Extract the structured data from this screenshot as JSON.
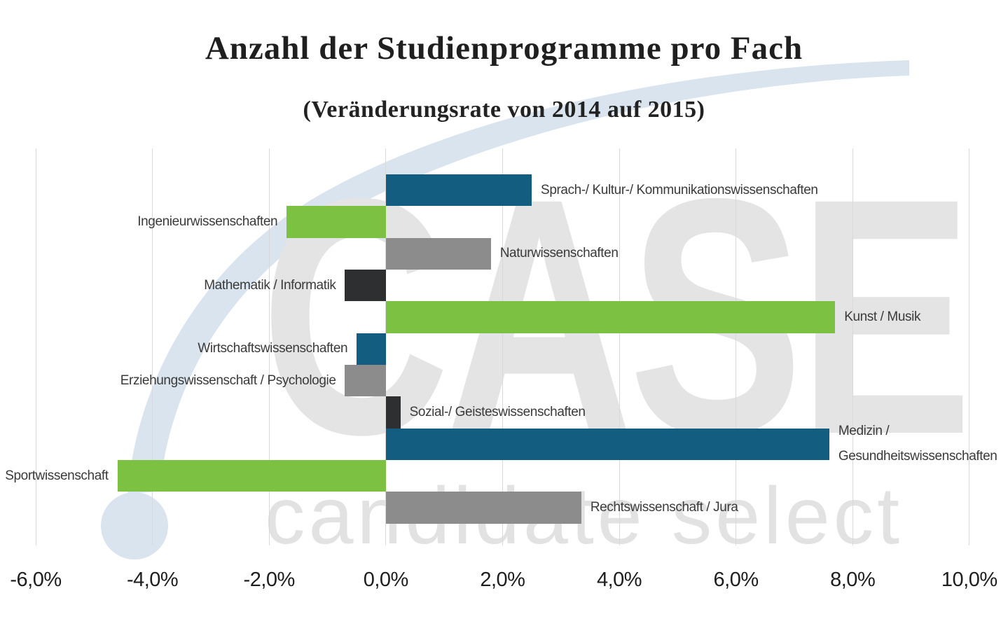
{
  "title": "Anzahl der Studienprogramme pro Fach",
  "subtitle": "(Veränderungsrate von 2014 auf 2015)",
  "watermark": {
    "case_text": "CASE",
    "tagline": "candidate select"
  },
  "colors": {
    "blue": "#135D80",
    "green": "#7CC142",
    "gray": "#8C8C8C",
    "dark": "#2D2F31",
    "gridline": "#D9D9D9",
    "swoosh": "#D9E4EE",
    "watermark_text": "#E4E4E4",
    "title_text": "#1F1F1F",
    "label_text": "#3A3A3A"
  },
  "chart_data": {
    "type": "bar",
    "orientation": "horizontal",
    "title": "Anzahl der Studienprogramme pro Fach",
    "subtitle": "(Veränderungsrate von 2014 auf 2015)",
    "xlabel": "",
    "ylabel": "",
    "grid": true,
    "legend": false,
    "x_axis": {
      "min": -6,
      "max": 10,
      "step": 2,
      "tick_values": [
        -6,
        -4,
        -2,
        0,
        2,
        4,
        6,
        8,
        10
      ],
      "tick_labels": [
        "-6,0%",
        "-4,0%",
        "-2,0%",
        "0,0%",
        "2,0%",
        "4,0%",
        "6,0%",
        "8,0%",
        "10,0%"
      ]
    },
    "categories": [
      "Sprach-/ Kultur-/ Kommunikationswissenschaften",
      "Ingenieurwissenschaften",
      "Naturwissenschaften",
      "Mathematik / Informatik",
      "Kunst / Musik",
      "Wirtschaftswissenschaften",
      "Erziehungswissenschaft / Psychologie",
      "Sozial-/ Geisteswissenschaften",
      "Medizin / Gesundheitswissenschaften",
      "Sportwissenschaft",
      "Rechtswissenschaft / Jura"
    ],
    "values": [
      2.5,
      -1.7,
      1.8,
      -0.7,
      7.7,
      -0.5,
      -0.7,
      0.25,
      7.6,
      -4.6,
      3.35
    ],
    "series": [
      {
        "lines": [
          "Sprach-/ Kultur-/ Kommunikationswissenschaften"
        ],
        "value": 2.5,
        "color": "blue"
      },
      {
        "lines": [
          "Ingenieurwissenschaften"
        ],
        "value": -1.7,
        "color": "green"
      },
      {
        "lines": [
          "Naturwissenschaften"
        ],
        "value": 1.8,
        "color": "gray"
      },
      {
        "lines": [
          "Mathematik / Informatik"
        ],
        "value": -0.7,
        "color": "dark"
      },
      {
        "lines": [
          "Kunst / Musik"
        ],
        "value": 7.7,
        "color": "green"
      },
      {
        "lines": [
          "Wirtschaftswissenschaften"
        ],
        "value": -0.5,
        "color": "blue"
      },
      {
        "lines": [
          "Erziehungswissenschaft / Psychologie"
        ],
        "value": -0.7,
        "color": "gray"
      },
      {
        "lines": [
          "Sozial-/ Geisteswissenschaften"
        ],
        "value": 0.25,
        "color": "dark"
      },
      {
        "lines": [
          "Medizin /",
          "Gesundheitswissenschaften"
        ],
        "value": 7.6,
        "color": "blue"
      },
      {
        "lines": [
          "Sportwissenschaft"
        ],
        "value": -4.6,
        "color": "green"
      },
      {
        "lines": [
          "Rechtswissenschaft / Jura"
        ],
        "value": 3.35,
        "color": "gray"
      }
    ]
  }
}
